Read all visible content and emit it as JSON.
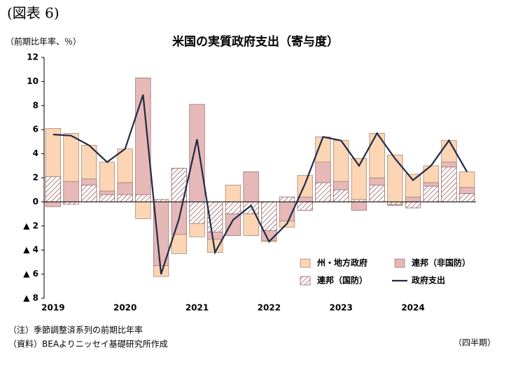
{
  "figure_label": "(図表 6)",
  "chart_data": {
    "type": "bar",
    "title": "米国の実質政府支出（寄与度）",
    "y_unit": "（前期比年率、％）",
    "x_unit": "（四半期）",
    "notes": [
      "（注）季節調整済系列の前期比年率",
      "（資料）BEAよりニッセイ基礎研究所作成"
    ],
    "categories": [
      "2019",
      null,
      null,
      null,
      "2020",
      null,
      null,
      null,
      "2021",
      null,
      null,
      null,
      "2022",
      null,
      null,
      null,
      "2023",
      null,
      null,
      null,
      "2024",
      null,
      null,
      null
    ],
    "ylim": [
      -8,
      12
    ],
    "yticks": [
      {
        "value": -8,
        "label": "▲ 8"
      },
      {
        "value": -6,
        "label": "▲ 6"
      },
      {
        "value": -4,
        "label": "▲ 4"
      },
      {
        "value": -2,
        "label": "▲ 2"
      },
      0,
      2,
      4,
      6,
      8,
      10,
      12
    ],
    "stacked": true,
    "legend": "lower right",
    "series": [
      {
        "name": "州・地方政府",
        "color": "#fcd5b4",
        "values": [
          4.0,
          4.0,
          2.8,
          2.4,
          2.8,
          -1.4,
          -0.9,
          -1.6,
          -1.1,
          -1.1,
          1.4,
          -1.8,
          -0.1,
          -0.5,
          1.8,
          2.1,
          3.4,
          3.4,
          3.7,
          3.9,
          1.9,
          1.4,
          1.8,
          1.3
        ]
      },
      {
        "name": "連邦（非国防）",
        "color": "#e6b8b7",
        "values": [
          -0.4,
          1.7,
          0.5,
          0.3,
          1.0,
          9.7,
          -5.3,
          -2.7,
          8.1,
          -0.6,
          -1.8,
          2.5,
          -0.8,
          -1.6,
          0.4,
          1.7,
          0.7,
          -0.7,
          0.6,
          -0.1,
          0.4,
          0.3,
          0.4,
          0.5
        ]
      },
      {
        "name": "連邦（国防）",
        "color": "#8c4b4b",
        "hatch": true,
        "values": [
          2.1,
          -0.2,
          1.4,
          0.6,
          0.6,
          0.6,
          0.2,
          2.8,
          -1.8,
          -2.5,
          -1.0,
          -1.0,
          -2.4,
          0.4,
          -0.7,
          1.6,
          1.0,
          0.2,
          1.4,
          -0.2,
          -0.5,
          1.3,
          2.9,
          0.7
        ]
      },
      {
        "name": "政府支出",
        "type": "line",
        "color": "#1f2a44",
        "values": [
          5.6,
          5.5,
          4.7,
          3.3,
          4.4,
          8.9,
          -6.0,
          -1.4,
          5.2,
          -4.2,
          -1.5,
          -0.3,
          -3.3,
          -1.8,
          1.5,
          5.4,
          5.1,
          3.0,
          5.7,
          3.6,
          1.8,
          3.0,
          5.1,
          2.5
        ]
      }
    ]
  }
}
